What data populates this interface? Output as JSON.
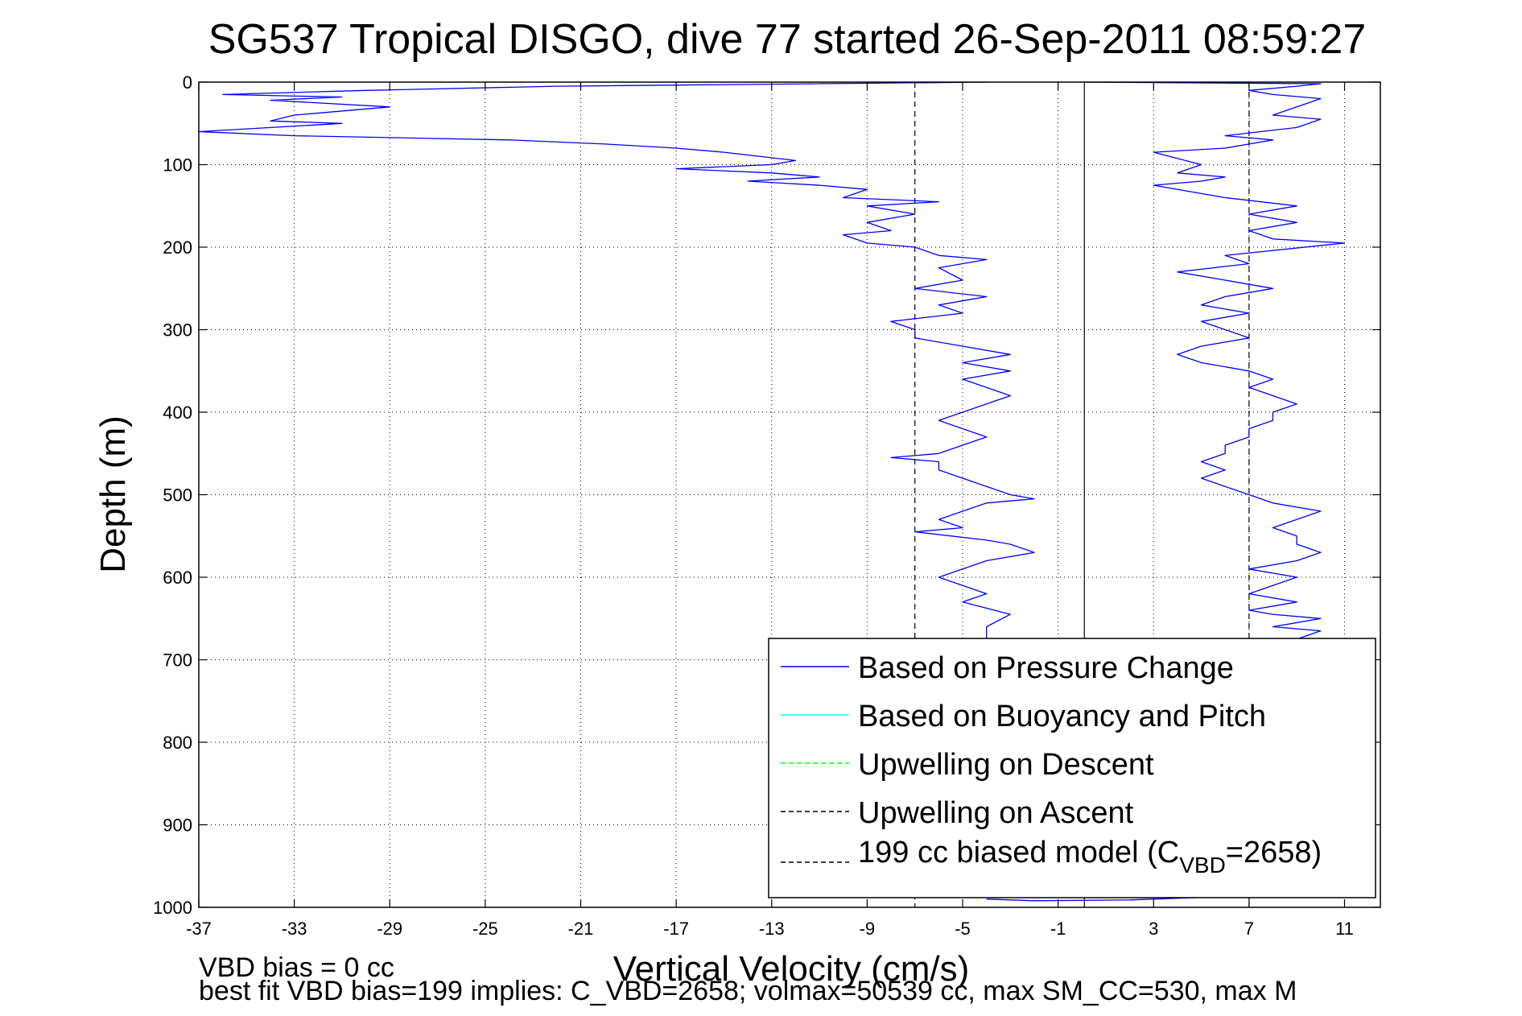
{
  "chart_data": {
    "type": "line",
    "title": "SG537 Tropical DISGO, dive 77 started 26-Sep-2011 08:59:27",
    "xlabel": "Vertical Velocity (cm/s)",
    "ylabel": "Depth (m)",
    "xlim": [
      -37,
      12.5
    ],
    "ylim": [
      0,
      1000
    ],
    "y_reversed": true,
    "grid": true,
    "x_ticks": [
      "-37",
      "-33",
      "-29",
      "-25",
      "-21",
      "-17",
      "-13",
      "-9",
      "-5",
      "-1",
      "3",
      "7",
      "11"
    ],
    "y_ticks": [
      "0",
      "100",
      "200",
      "300",
      "400",
      "500",
      "600",
      "700",
      "800",
      "900",
      "1000"
    ],
    "legend_position": "bottom-right",
    "legend": [
      {
        "label": "Based on Pressure Change",
        "color": "#0000ff",
        "style": "solid"
      },
      {
        "label": "Based on Buoyancy and Pitch",
        "color": "#00ffff",
        "style": "solid"
      },
      {
        "label": "Upwelling on Descent",
        "color": "#00ff00",
        "style": "dashed"
      },
      {
        "label": "Upwelling on Ascent",
        "color": "#000000",
        "style": "dashed"
      },
      {
        "label_prefix": "199 cc biased model (C",
        "label_sub": "VBD",
        "label_suffix": "=2658)",
        "color": "#000000",
        "style": "dashed"
      }
    ],
    "reference_lines": [
      {
        "x": -7,
        "style": "dashed",
        "color": "#000000"
      },
      {
        "x": 7,
        "style": "dashed",
        "color": "#000000"
      },
      {
        "x": 0.1,
        "style": "solid",
        "color": "#000000"
      }
    ],
    "series": [
      {
        "name": "Based on Pressure Change",
        "color": "#0000ff",
        "segments": [
          {
            "part": "descent",
            "points": [
              [
                -4,
                0
              ],
              [
                -22,
                5
              ],
              [
                -30,
                10
              ],
              [
                -36,
                15
              ],
              [
                -31,
                18
              ],
              [
                -34,
                22
              ],
              [
                -29,
                30
              ],
              [
                -33,
                40
              ],
              [
                -34,
                47
              ],
              [
                -31,
                50
              ],
              [
                -37,
                60
              ],
              [
                -33,
                65
              ],
              [
                -24,
                70
              ],
              [
                -20,
                75
              ],
              [
                -17,
                80
              ],
              [
                -15,
                85
              ],
              [
                -12,
                95
              ],
              [
                -13,
                100
              ],
              [
                -17,
                105
              ],
              [
                -13,
                110
              ],
              [
                -11,
                115
              ],
              [
                -14,
                120
              ],
              [
                -11,
                125
              ],
              [
                -9,
                130
              ],
              [
                -10,
                140
              ],
              [
                -6,
                145
              ],
              [
                -9,
                150
              ],
              [
                -7,
                160
              ],
              [
                -9,
                170
              ],
              [
                -8,
                180
              ],
              [
                -10,
                185
              ],
              [
                -9,
                195
              ],
              [
                -7,
                200
              ],
              [
                -6,
                210
              ],
              [
                -4,
                215
              ],
              [
                -6,
                225
              ],
              [
                -5,
                240
              ],
              [
                -7,
                250
              ],
              [
                -4,
                260
              ],
              [
                -6,
                270
              ],
              [
                -5,
                280
              ],
              [
                -8,
                290
              ],
              [
                -7,
                300
              ],
              [
                -7,
                310
              ],
              [
                -5,
                320
              ],
              [
                -3,
                330
              ],
              [
                -5,
                340
              ],
              [
                -3,
                350
              ],
              [
                -5,
                360
              ],
              [
                -4,
                370
              ],
              [
                -3,
                380
              ],
              [
                -4,
                390
              ],
              [
                -5,
                400
              ],
              [
                -6,
                410
              ],
              [
                -5,
                420
              ],
              [
                -4,
                430
              ],
              [
                -5,
                440
              ],
              [
                -6,
                450
              ],
              [
                -8,
                455
              ],
              [
                -6,
                460
              ],
              [
                -6,
                470
              ],
              [
                -5,
                480
              ],
              [
                -4,
                490
              ],
              [
                -3,
                500
              ],
              [
                -2,
                505
              ],
              [
                -4,
                510
              ],
              [
                -5,
                520
              ],
              [
                -6,
                530
              ],
              [
                -5,
                540
              ],
              [
                -7,
                545
              ],
              [
                -4,
                555
              ],
              [
                -3,
                560
              ],
              [
                -2,
                570
              ],
              [
                -4,
                580
              ],
              [
                -5,
                590
              ],
              [
                -6,
                600
              ],
              [
                -5,
                610
              ],
              [
                -4,
                620
              ],
              [
                -5,
                630
              ],
              [
                -3,
                645
              ],
              [
                -4,
                660
              ],
              [
                -4,
                680
              ]
            ]
          },
          {
            "part": "bottom",
            "points": [
              [
                -4,
                990
              ],
              [
                -2,
                992
              ],
              [
                2,
                991
              ],
              [
                5,
                988
              ]
            ]
          },
          {
            "part": "ascent",
            "points": [
              [
                8,
                680
              ],
              [
                9,
                675
              ],
              [
                10,
                665
              ],
              [
                8,
                660
              ],
              [
                10,
                650
              ],
              [
                8,
                645
              ],
              [
                7,
                640
              ],
              [
                9,
                630
              ],
              [
                7,
                620
              ],
              [
                8,
                610
              ],
              [
                9,
                600
              ],
              [
                7,
                590
              ],
              [
                9,
                580
              ],
              [
                10,
                570
              ],
              [
                9,
                560
              ],
              [
                9,
                550
              ],
              [
                8,
                540
              ],
              [
                9,
                530
              ],
              [
                10,
                520
              ],
              [
                8,
                510
              ],
              [
                7,
                500
              ],
              [
                6,
                490
              ],
              [
                5,
                480
              ],
              [
                6,
                470
              ],
              [
                5,
                460
              ],
              [
                6,
                450
              ],
              [
                6,
                440
              ],
              [
                7,
                430
              ],
              [
                7,
                420
              ],
              [
                8,
                410
              ],
              [
                8,
                400
              ],
              [
                9,
                390
              ],
              [
                8,
                380
              ],
              [
                7,
                370
              ],
              [
                8,
                360
              ],
              [
                7,
                350
              ],
              [
                5,
                340
              ],
              [
                4,
                330
              ],
              [
                5,
                320
              ],
              [
                7,
                310
              ],
              [
                6,
                300
              ],
              [
                5,
                290
              ],
              [
                7,
                280
              ],
              [
                5,
                270
              ],
              [
                6,
                260
              ],
              [
                8,
                250
              ],
              [
                6,
                240
              ],
              [
                4,
                230
              ],
              [
                7,
                220
              ],
              [
                6,
                210
              ],
              [
                11,
                195
              ],
              [
                8,
                190
              ],
              [
                7,
                180
              ],
              [
                9,
                170
              ],
              [
                7,
                160
              ],
              [
                9,
                150
              ],
              [
                6,
                140
              ],
              [
                3,
                125
              ],
              [
                5,
                120
              ],
              [
                6,
                115
              ],
              [
                4,
                110
              ],
              [
                5,
                100
              ],
              [
                3,
                85
              ],
              [
                6,
                80
              ],
              [
                7,
                75
              ],
              [
                8,
                70
              ],
              [
                6,
                65
              ],
              [
                9,
                55
              ],
              [
                10,
                45
              ],
              [
                8,
                40
              ],
              [
                9,
                30
              ],
              [
                10,
                20
              ],
              [
                8,
                15
              ],
              [
                7,
                10
              ],
              [
                9,
                5
              ],
              [
                10,
                2
              ],
              [
                0,
                0
              ]
            ]
          }
        ]
      }
    ]
  },
  "footnotes": {
    "line1": "VBD bias = 0 cc",
    "line2": "best fit VBD bias=199 implies: C_VBD=2658; volmax=50539 cc, max SM_CC=530, max M"
  }
}
